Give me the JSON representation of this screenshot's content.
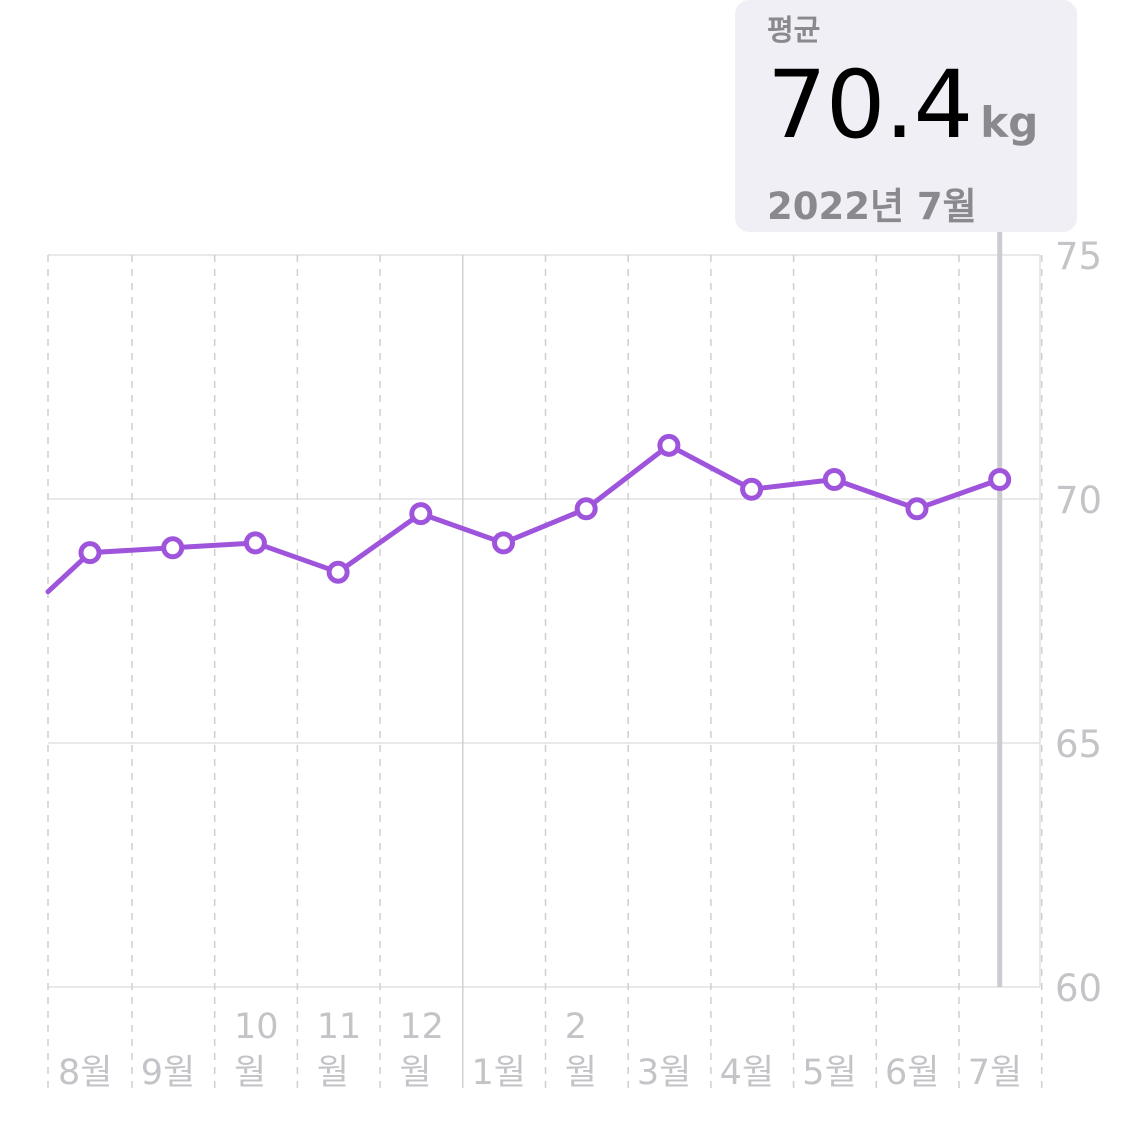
{
  "callout": {
    "label": "평균",
    "value": "70.4",
    "unit": "kg",
    "date": "2022년 7월"
  },
  "chart_data": {
    "type": "line",
    "categories": [
      "8월",
      "9월",
      "10월",
      "11월",
      "12월",
      "1월",
      "2월",
      "3월",
      "4월",
      "5월",
      "6월",
      "7월"
    ],
    "category_label_lines": [
      [
        "8월"
      ],
      [
        "9월"
      ],
      [
        "10",
        "월"
      ],
      [
        "11",
        "월"
      ],
      [
        "12",
        "월"
      ],
      [
        "1월"
      ],
      [
        "2",
        "월"
      ],
      [
        "3월"
      ],
      [
        "4월"
      ],
      [
        "5월"
      ],
      [
        "6월"
      ],
      [
        "7월"
      ]
    ],
    "values": [
      68.9,
      69.0,
      69.1,
      68.5,
      69.7,
      69.1,
      69.8,
      71.1,
      70.2,
      70.4,
      69.8,
      70.4
    ],
    "partial_prior_value": 68.1,
    "ylim": [
      60,
      75
    ],
    "yticks": [
      75,
      70,
      65,
      60
    ],
    "highlighted_category": "7월",
    "line_color": "#9f55db",
    "grid": true,
    "y_axis_position": "right"
  }
}
